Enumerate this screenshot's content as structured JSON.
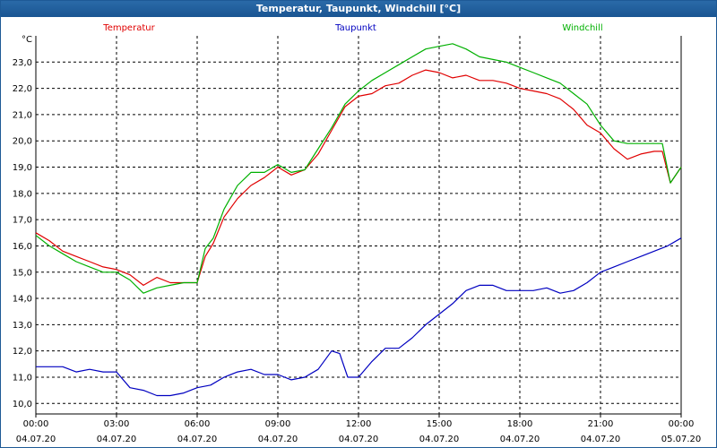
{
  "window": {
    "title": "Temperatur, Taupunkt, Windchill [°C]"
  },
  "chart_data": {
    "type": "line",
    "title": "Temperatur, Taupunkt, Windchill [°C]",
    "ylabel": "°C",
    "xlabel": "",
    "ylim": [
      9.6,
      24.0
    ],
    "xlim": [
      0,
      24
    ],
    "grid": true,
    "legend_position": "top",
    "yticks": [
      10,
      11,
      12,
      13,
      14,
      15,
      16,
      17,
      18,
      19,
      20,
      21,
      22,
      23
    ],
    "ytick_labels": [
      "10,0",
      "11,0",
      "12,0",
      "13,0",
      "14,0",
      "15,0",
      "16,0",
      "17,0",
      "18,0",
      "19,0",
      "20,0",
      "21,0",
      "22,0",
      "23,0"
    ],
    "xticks": [
      {
        "x": 0,
        "time": "00:00",
        "date": "04.07.20"
      },
      {
        "x": 3,
        "time": "03:00",
        "date": "04.07.20"
      },
      {
        "x": 6,
        "time": "06:00",
        "date": "04.07.20"
      },
      {
        "x": 9,
        "time": "09:00",
        "date": "04.07.20"
      },
      {
        "x": 12,
        "time": "12:00",
        "date": "04.07.20"
      },
      {
        "x": 15,
        "time": "15:00",
        "date": "04.07.20"
      },
      {
        "x": 18,
        "time": "18:00",
        "date": "04.07.20"
      },
      {
        "x": 21,
        "time": "21:00",
        "date": "04.07.20"
      },
      {
        "x": 24,
        "time": "00:00",
        "date": "05.07.20"
      }
    ],
    "series": [
      {
        "name": "Temperatur",
        "color": "#e00000",
        "x": [
          0,
          0.5,
          1,
          1.5,
          2,
          2.5,
          3,
          3.5,
          4,
          4.5,
          5,
          5.5,
          6,
          6.3,
          6.6,
          7,
          7.5,
          8,
          8.5,
          9,
          9.5,
          10,
          10.5,
          11,
          11.5,
          12,
          12.5,
          13,
          13.5,
          14,
          14.5,
          15,
          15.5,
          16,
          16.5,
          17,
          17.5,
          18,
          18.5,
          19,
          19.5,
          20,
          20.5,
          21,
          21.5,
          22,
          22.5,
          23,
          23.3,
          23.6,
          24
        ],
        "values": [
          16.5,
          16.2,
          15.8,
          15.6,
          15.4,
          15.2,
          15.1,
          14.9,
          14.5,
          14.8,
          14.6,
          14.6,
          14.6,
          15.6,
          16.1,
          17.1,
          17.8,
          18.3,
          18.6,
          19.0,
          18.7,
          18.9,
          19.5,
          20.4,
          21.3,
          21.7,
          21.8,
          22.1,
          22.2,
          22.5,
          22.7,
          22.6,
          22.4,
          22.5,
          22.3,
          22.3,
          22.2,
          22.0,
          21.9,
          21.8,
          21.6,
          21.2,
          20.6,
          20.3,
          19.7,
          19.3,
          19.5,
          19.6,
          19.6,
          18.4,
          19.0
        ]
      },
      {
        "name": "Taupunkt",
        "color": "#0000c0",
        "x": [
          0,
          0.5,
          1,
          1.5,
          2,
          2.5,
          3,
          3.5,
          4,
          4.5,
          5,
          5.5,
          6,
          6.5,
          7,
          7.5,
          8,
          8.5,
          9,
          9.5,
          10,
          10.5,
          11,
          11.3,
          11.6,
          12,
          12.5,
          13,
          13.5,
          14,
          14.5,
          15,
          15.5,
          16,
          16.5,
          17,
          17.5,
          18,
          18.5,
          19,
          19.5,
          20,
          20.5,
          21,
          21.5,
          22,
          22.5,
          23,
          23.5,
          24
        ],
        "values": [
          11.4,
          11.4,
          11.4,
          11.2,
          11.3,
          11.2,
          11.2,
          10.6,
          10.5,
          10.3,
          10.3,
          10.4,
          10.6,
          10.7,
          11.0,
          11.2,
          11.3,
          11.1,
          11.1,
          10.9,
          11.0,
          11.3,
          12.0,
          11.9,
          11.0,
          11.0,
          11.6,
          12.1,
          12.1,
          12.5,
          13.0,
          13.4,
          13.8,
          14.3,
          14.5,
          14.5,
          14.3,
          14.3,
          14.3,
          14.4,
          14.2,
          14.3,
          14.6,
          15.0,
          15.2,
          15.4,
          15.6,
          15.8,
          16.0,
          16.3
        ]
      },
      {
        "name": "Windchill",
        "color": "#00b000",
        "x": [
          0,
          0.5,
          1,
          1.5,
          2,
          2.5,
          3,
          3.5,
          4,
          4.5,
          5,
          5.5,
          6,
          6.3,
          6.6,
          7,
          7.5,
          8,
          8.5,
          9,
          9.5,
          10,
          10.5,
          11,
          11.5,
          12,
          12.5,
          13,
          13.5,
          14,
          14.5,
          15,
          15.5,
          16,
          16.5,
          17,
          17.5,
          18,
          18.5,
          19,
          19.5,
          20,
          20.5,
          21,
          21.5,
          22,
          22.5,
          23,
          23.3,
          23.6,
          24
        ],
        "values": [
          16.4,
          16.0,
          15.7,
          15.4,
          15.2,
          15.0,
          15.0,
          14.7,
          14.2,
          14.4,
          14.5,
          14.6,
          14.6,
          15.9,
          16.3,
          17.4,
          18.3,
          18.8,
          18.8,
          19.1,
          18.8,
          18.9,
          19.7,
          20.5,
          21.4,
          21.9,
          22.3,
          22.6,
          22.9,
          23.2,
          23.5,
          23.6,
          23.7,
          23.5,
          23.2,
          23.1,
          23.0,
          22.8,
          22.6,
          22.4,
          22.2,
          21.8,
          21.4,
          20.6,
          20.0,
          19.9,
          19.9,
          19.9,
          19.9,
          18.4,
          19.0
        ]
      }
    ]
  }
}
